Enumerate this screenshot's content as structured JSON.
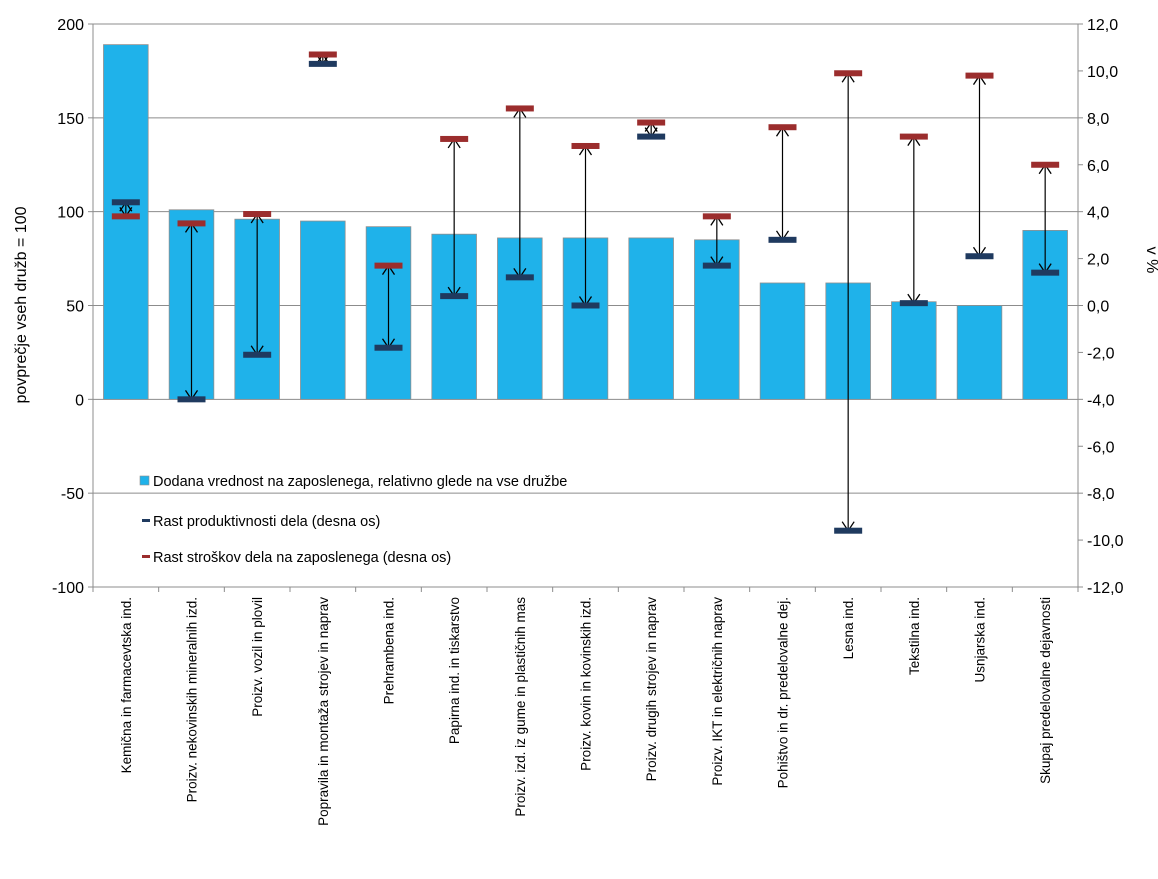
{
  "chart_data": {
    "type": "bar",
    "title": "",
    "ylabel": "povprečje vseh družb = 100",
    "y2label": "v %",
    "ylim": [
      -100,
      200
    ],
    "yticks": [
      -100,
      -50,
      0,
      50,
      100,
      150,
      200
    ],
    "y2lim": [
      -12,
      12
    ],
    "y2ticks": [
      "-12,0",
      "-10,0",
      "-8,0",
      "-6,0",
      "-4,0",
      "-2,0",
      "0,0",
      "2,0",
      "4,0",
      "6,0",
      "8,0",
      "10,0",
      "12,0"
    ],
    "grid": true,
    "legend_position": "lower-left inside",
    "categories": [
      "Kemična in farmacevtska ind.",
      "Proizv. nekovinskih mineralnih izd.",
      "Proizv. vozil in plovil",
      "Popravila in montaža strojev in naprav",
      "Prehrambena ind.",
      "Papirna ind. in tiskarstvo",
      "Proizv. izd. iz gume in plastičnih mas",
      "Proizv. kovin in kovinskih izd.",
      "Proizv. drugih strojev in naprav",
      "Proizv. IKT in električnih naprav",
      "Pohištvo in dr. predelovalne dej.",
      "Lesna ind.",
      "Tekstilna ind.",
      "Usnjarska ind.",
      "Skupaj predelovalne dejavnosti"
    ],
    "series": [
      {
        "name": "Dodana vrednost na zaposlenega, relativno glede na vse družbe",
        "kind": "bar",
        "axis": "left",
        "color": "#1fb2ea",
        "values": [
          189,
          101,
          96,
          95,
          92,
          88,
          86,
          86,
          86,
          85,
          62,
          62,
          52,
          50,
          90
        ]
      },
      {
        "name": "Rast produktivnosti dela (desna os)",
        "kind": "marker",
        "axis": "right",
        "color": "#1f3a5f",
        "values": [
          4.4,
          -4.0,
          -2.1,
          10.3,
          -1.8,
          0.4,
          1.2,
          0.0,
          7.2,
          1.7,
          2.8,
          -9.6,
          0.1,
          2.1,
          1.4
        ]
      },
      {
        "name": "Rast stroškov dela na zaposlenega (desna os)",
        "kind": "marker",
        "axis": "right",
        "color": "#9b2d2d",
        "values": [
          3.8,
          3.5,
          3.9,
          10.7,
          1.7,
          7.1,
          8.4,
          6.8,
          7.8,
          3.8,
          7.6,
          9.9,
          7.2,
          9.8,
          6.0
        ]
      }
    ]
  }
}
